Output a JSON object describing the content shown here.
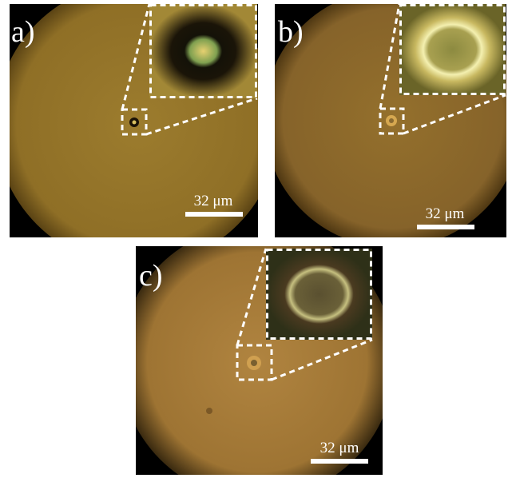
{
  "panels": [
    {
      "label": "a)",
      "scale_bar": "32 μm"
    },
    {
      "label": "b)",
      "scale_bar": "32 μm"
    },
    {
      "label": "c)",
      "scale_bar": "32 μm"
    }
  ]
}
